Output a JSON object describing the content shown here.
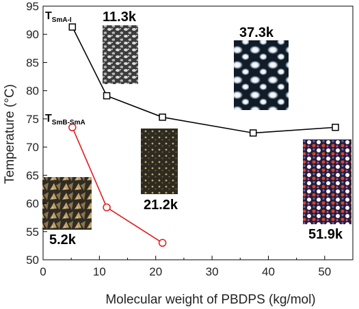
{
  "chart_data": {
    "type": "line",
    "xlabel": "Molecular weight of PBDPS (kg/mol)",
    "ylabel": "Temperature (°C)",
    "xlim": [
      0,
      55
    ],
    "ylim": [
      50,
      95
    ],
    "x_ticks": [
      0,
      10,
      20,
      30,
      40,
      50
    ],
    "y_ticks": [
      50,
      55,
      60,
      65,
      70,
      75,
      80,
      85,
      90,
      95
    ],
    "x_tick_labels": [
      "0",
      "10",
      "20",
      "30",
      "40",
      "50"
    ],
    "y_tick_labels": [
      "50",
      "55",
      "60",
      "65",
      "70",
      "75",
      "80",
      "85",
      "90",
      "95"
    ],
    "grid": false,
    "series": [
      {
        "label_main": "T",
        "label_sub": "SmA-I",
        "color": "#000000",
        "marker": "open-square",
        "x": [
          5.2,
          11.3,
          21.2,
          37.3,
          51.9
        ],
        "y": [
          91.3,
          79.1,
          75.3,
          72.5,
          73.5
        ]
      },
      {
        "label_main": "T",
        "label_sub": "SmB-SmA",
        "color": "#e31a1c",
        "marker": "open-circle",
        "x": [
          5.2,
          11.3,
          21.2
        ],
        "y": [
          73.5,
          59.3,
          53.0
        ]
      }
    ],
    "annotations": [
      {
        "text": "11.3k",
        "tex": "polka"
      },
      {
        "text": "37.3k",
        "tex": "blob"
      },
      {
        "text": "21.2k",
        "tex": "dark"
      },
      {
        "text": "5.2k",
        "tex": "leaf"
      },
      {
        "text": "51.9k",
        "tex": "color"
      }
    ]
  }
}
